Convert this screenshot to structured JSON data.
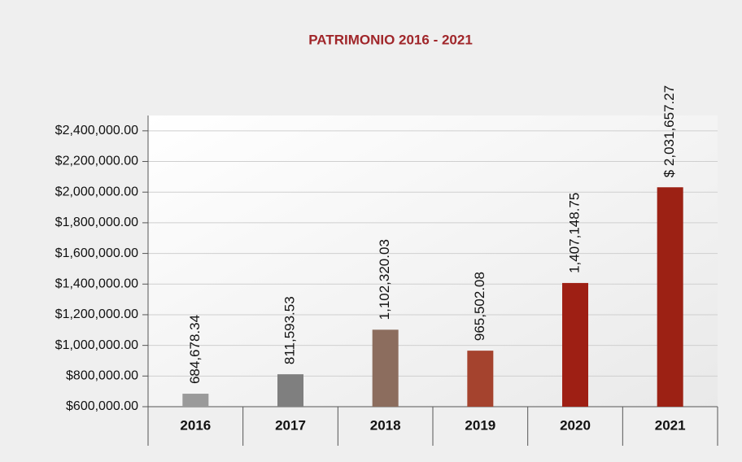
{
  "chart_data": {
    "type": "bar",
    "title": "PATRIMONIO 2016 - 2021",
    "categories": [
      "2016",
      "2017",
      "2018",
      "2019",
      "2020",
      "2021"
    ],
    "values": [
      684678.34,
      811593.53,
      1102320.03,
      965502.08,
      1407148.75,
      2031657.27
    ],
    "value_labels": [
      "684,678.34",
      "811,593.53",
      "1,102,320.03",
      "965,502.08",
      "1,407,148.75",
      "$ 2,031,657.27"
    ],
    "colors": [
      "#9a9a9a",
      "#7f7f7f",
      "#8c6d5e",
      "#a5432e",
      "#9e1f14",
      "#9c2114"
    ],
    "ylim": [
      600000,
      2500000
    ],
    "yticks": [
      {
        "value": 600000,
        "label": "$600,000.00"
      },
      {
        "value": 800000,
        "label": "$800,000.00"
      },
      {
        "value": 1000000,
        "label": "$1,000,000.00"
      },
      {
        "value": 1200000,
        "label": "$1,200,000.00"
      },
      {
        "value": 1400000,
        "label": "$1,400,000.00"
      },
      {
        "value": 1600000,
        "label": "$1,600,000.00"
      },
      {
        "value": 1800000,
        "label": "$1,800,000.00"
      },
      {
        "value": 2000000,
        "label": "$2,000,000.00"
      },
      {
        "value": 2200000,
        "label": "$2,200,000.00"
      },
      {
        "value": 2400000,
        "label": "$2,400,000.00"
      }
    ],
    "grid": true
  }
}
